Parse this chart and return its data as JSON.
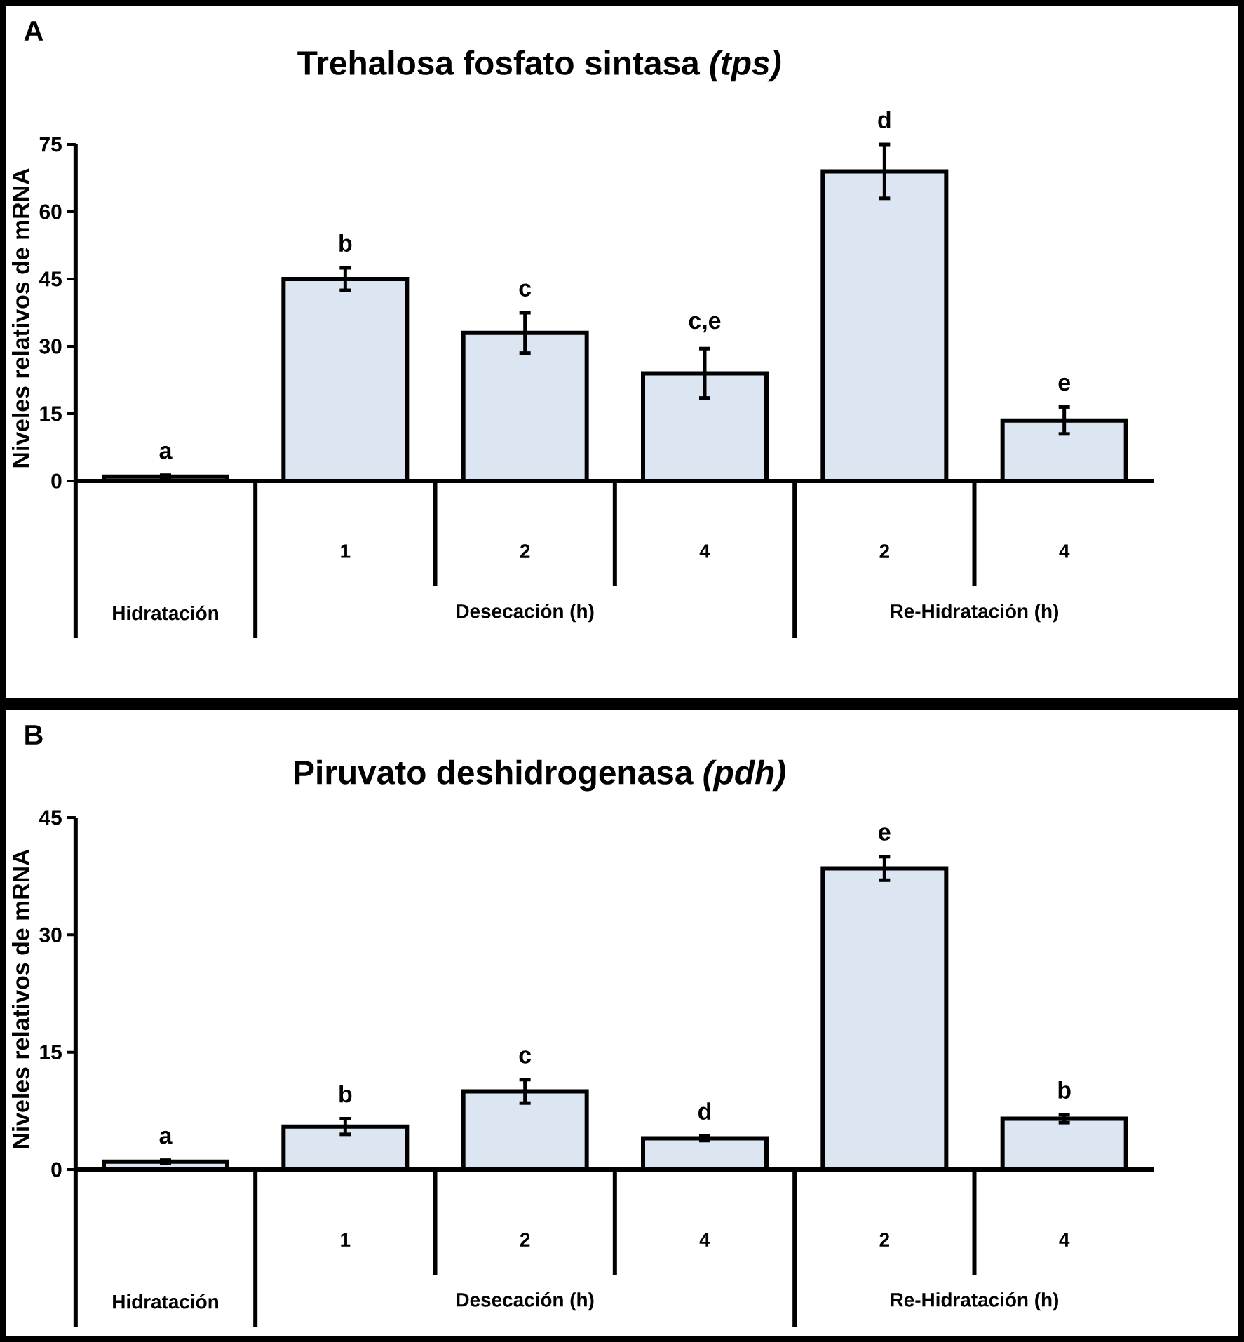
{
  "chart_data": [
    {
      "type": "bar",
      "title": "Trehalosa fosfato sintasa *(tps)*",
      "ylabel": "Niveles relativos de mRNA",
      "categories": [
        null,
        "1",
        "2",
        "4",
        "2",
        "4"
      ],
      "values": [
        1,
        45,
        33,
        24,
        69,
        13.5
      ],
      "errors": [
        0.3,
        2.5,
        4.5,
        5.5,
        6,
        3
      ],
      "color": "#dce6f2",
      "ylim": [
        0,
        75
      ],
      "yticks": [
        0,
        15,
        30,
        45,
        60,
        75
      ],
      "annotations": [
        "A",
        "a",
        "b",
        "c",
        "c,e",
        "d",
        "e",
        "Hidratación",
        "Desecación (h)",
        "Re-Hidratación (h)"
      ]
    },
    {
      "type": "bar",
      "title": "Piruvato deshidrogenasa *(pdh)*",
      "ylabel": "Niveles relativos de mRNA",
      "categories": [
        null,
        "1",
        "2",
        "4",
        "2",
        "4"
      ],
      "values": [
        1,
        5.5,
        10,
        4,
        38.5,
        6.5
      ],
      "errors": [
        0.2,
        1,
        1.5,
        0.3,
        1.5,
        0.5
      ],
      "color": "#dce6f2",
      "ylim": [
        0,
        45
      ],
      "yticks": [
        0,
        15,
        30,
        45
      ],
      "annotations": [
        "B",
        "a",
        "b",
        "c",
        "d",
        "e",
        "b",
        "Hidratación",
        "Desecación (h)",
        "Re-Hidratación (h)"
      ]
    }
  ]
}
